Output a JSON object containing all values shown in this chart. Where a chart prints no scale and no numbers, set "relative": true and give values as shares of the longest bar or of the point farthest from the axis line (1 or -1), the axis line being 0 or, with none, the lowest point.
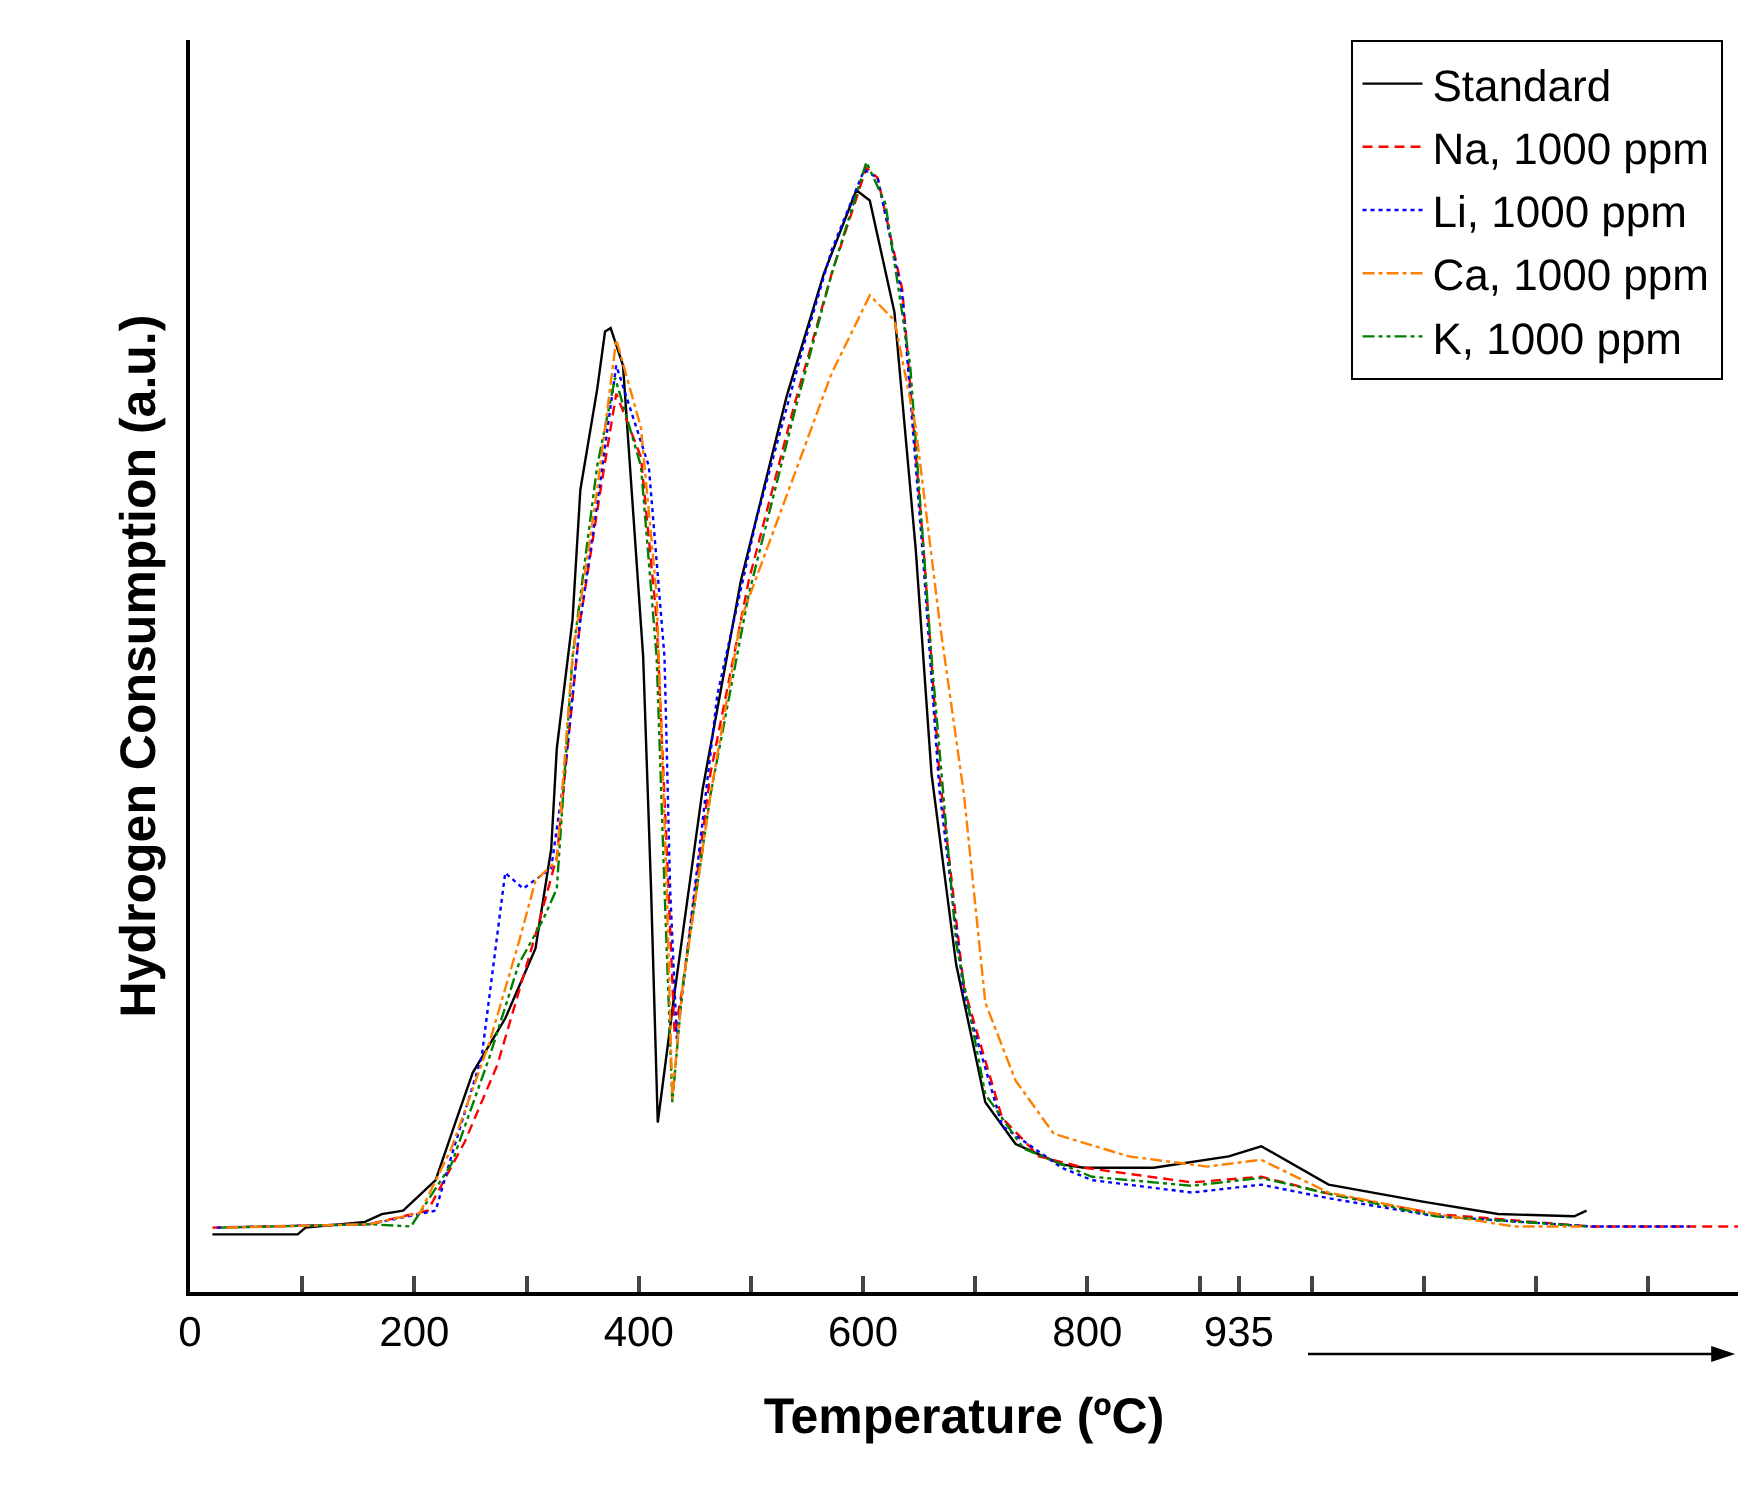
{
  "chart_data": {
    "type": "line",
    "relative": true,
    "xlabel": "Temperature (ºC)",
    "ylabel": "Hydrogen Consumption (a.u.)",
    "xlim": [
      0,
      1380
    ],
    "xticks": [
      0,
      {
        "value": 100,
        "label": null
      },
      200,
      {
        "value": 300,
        "label": null
      },
      400,
      {
        "value": 500,
        "label": null
      },
      600,
      {
        "value": 700,
        "label": null
      },
      800,
      {
        "value": 900,
        "label": null
      },
      935,
      {
        "value": 1000,
        "label": null
      },
      {
        "value": 1100,
        "label": null
      },
      {
        "value": 1200,
        "label": null
      },
      {
        "value": 1300,
        "label": null
      }
    ],
    "grid": false,
    "legend": "top right",
    "marker": "none",
    "series": [
      {
        "name": "Standard",
        "color": "#000000",
        "line_style": "solid",
        "x": [
          20,
          96,
          103,
          156,
          171,
          190,
          219,
          238,
          252,
          281,
          308,
          322,
          327,
          341,
          348,
          363,
          370,
          375,
          386,
          404,
          411,
          417,
          432,
          457,
          491,
          532,
          565,
          594,
          606,
          628,
          647,
          661,
          683,
          709,
          736,
          777,
          797,
          859,
          926,
          955,
          1015,
          1099,
          1166,
          1234,
          1245
        ],
        "values": [
          0.051,
          0.051,
          0.057,
          0.062,
          0.069,
          0.072,
          0.099,
          0.154,
          0.194,
          0.242,
          0.304,
          0.392,
          0.481,
          0.595,
          0.71,
          0.799,
          0.85,
          0.853,
          0.82,
          0.562,
          0.357,
          0.15,
          0.265,
          0.445,
          0.629,
          0.793,
          0.901,
          0.975,
          0.966,
          0.867,
          0.657,
          0.459,
          0.29,
          0.168,
          0.131,
          0.113,
          0.11,
          0.11,
          0.12,
          0.129,
          0.095,
          0.08,
          0.069,
          0.067,
          0.072
        ]
      },
      {
        "name": "Na, 1000 ppm",
        "color": "#ff0000",
        "line_style": "dashed",
        "x": [
          20,
          160,
          212,
          245,
          274,
          308,
          327,
          348,
          366,
          380,
          402,
          416,
          425,
          432,
          439,
          464,
          498,
          539,
          572,
          603,
          613,
          635,
          654,
          668,
          690,
          724,
          757,
          797,
          893,
          955,
          1015,
          1111,
          1248,
          1380
        ],
        "values": [
          0.057,
          0.06,
          0.072,
          0.133,
          0.201,
          0.316,
          0.385,
          0.595,
          0.71,
          0.795,
          0.739,
          0.595,
          0.392,
          0.228,
          0.269,
          0.459,
          0.629,
          0.786,
          0.901,
          0.995,
          0.986,
          0.887,
          0.657,
          0.459,
          0.269,
          0.154,
          0.12,
          0.11,
          0.097,
          0.102,
          0.087,
          0.069,
          0.058,
          0.058
        ]
      },
      {
        "name": "Li, 1000 ppm",
        "color": "#0000ff",
        "line_style": "dotted",
        "x": [
          24,
          160,
          219,
          233,
          260,
          281,
          297,
          322,
          334,
          348,
          363,
          380,
          409,
          423,
          428,
          434,
          450,
          470,
          505,
          546,
          572,
          601,
          613,
          635,
          654,
          668,
          690,
          724,
          777,
          804,
          893,
          955,
          1015,
          1111,
          1248,
          1337
        ],
        "values": [
          0.057,
          0.06,
          0.072,
          0.12,
          0.208,
          0.371,
          0.357,
          0.375,
          0.459,
          0.595,
          0.698,
          0.82,
          0.731,
          0.562,
          0.357,
          0.224,
          0.357,
          0.528,
          0.684,
          0.834,
          0.922,
          0.993,
          0.986,
          0.882,
          0.643,
          0.445,
          0.263,
          0.147,
          0.11,
          0.099,
          0.088,
          0.095,
          0.083,
          0.067,
          0.058,
          0.058
        ]
      },
      {
        "name": "Ca, 1000 ppm",
        "color": "#ff8000",
        "line_style": "dashdot",
        "x": [
          32,
          160,
          205,
          233,
          267,
          293,
          308,
          327,
          341,
          363,
          380,
          402,
          416,
          425,
          430,
          439,
          464,
          491,
          539,
          572,
          606,
          628,
          647,
          668,
          690,
          709,
          736,
          770,
          837,
          907,
          955,
          1015,
          1111,
          1180,
          1240
        ],
        "values": [
          0.057,
          0.06,
          0.07,
          0.127,
          0.221,
          0.309,
          0.364,
          0.382,
          0.562,
          0.71,
          0.843,
          0.765,
          0.617,
          0.357,
          0.171,
          0.269,
          0.44,
          0.595,
          0.724,
          0.813,
          0.882,
          0.86,
          0.765,
          0.595,
          0.44,
          0.256,
          0.187,
          0.14,
          0.12,
          0.111,
          0.117,
          0.088,
          0.069,
          0.058,
          0.058
        ]
      },
      {
        "name": "K, 1000 ppm",
        "color": "#008000",
        "line_style": "dashdotdot",
        "x": [
          28,
          160,
          197,
          233,
          267,
          293,
          315,
          327,
          341,
          363,
          379,
          402,
          416,
          423,
          430,
          439,
          464,
          498,
          539,
          572,
          603,
          620,
          642,
          661,
          683,
          709,
          743,
          777,
          804,
          893,
          955,
          1015,
          1111,
          1248
        ],
        "values": [
          0.057,
          0.06,
          0.058,
          0.113,
          0.208,
          0.29,
          0.33,
          0.357,
          0.562,
          0.731,
          0.809,
          0.731,
          0.562,
          0.357,
          0.168,
          0.269,
          0.44,
          0.617,
          0.779,
          0.901,
          1.0,
          0.963,
          0.82,
          0.562,
          0.309,
          0.175,
          0.127,
          0.113,
          0.102,
          0.094,
          0.101,
          0.087,
          0.067,
          0.058
        ]
      }
    ]
  }
}
